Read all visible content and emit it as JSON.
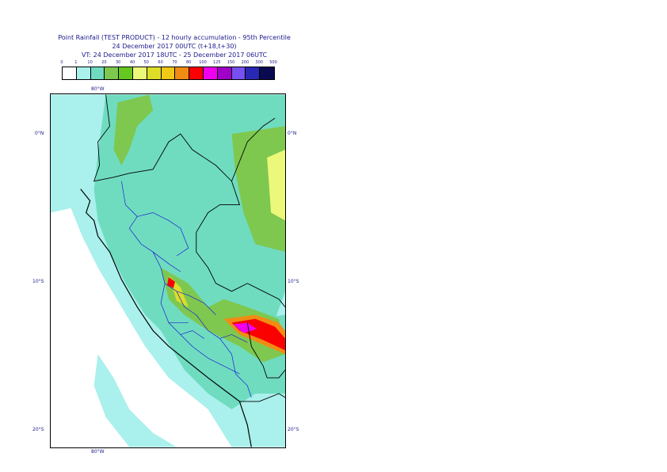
{
  "header": {
    "title": "Point Rainfall (TEST PRODUCT) - 12 hourly accumulation - 95th Percentile",
    "base_time": "24 December 2017 00UTC (t+18,t+30)",
    "valid_time": "VT: 24 December 2017 18UTC - 25 December 2017 06UTC"
  },
  "legend": {
    "ticks": [
      "0",
      "1",
      "10",
      "20",
      "30",
      "40",
      "50",
      "60",
      "70",
      "80",
      "100",
      "125",
      "150",
      "200",
      "300",
      "500"
    ],
    "colors": [
      "#ffffff",
      "#aaf0ec",
      "#6fdcc0",
      "#7ec850",
      "#64c81e",
      "#ecf87a",
      "#dcde28",
      "#f0c816",
      "#f08c14",
      "#fa0000",
      "#f000f0",
      "#a000c8",
      "#7850f0",
      "#2828b4",
      "#0a0a50"
    ]
  },
  "axes": {
    "lon_top": "80°W",
    "lon_bottom": "80°W",
    "lat_labels": [
      "0°N",
      "10°S",
      "20°S"
    ]
  },
  "map": {
    "region": "Peru and surroundings",
    "coastline_color": "#000000",
    "admin_border_color": "#1e1ed2",
    "colors": {
      "ocean_light": "#aaf0ec",
      "land_green": "#6fdcc0",
      "light_green": "#7ec850"
    }
  }
}
